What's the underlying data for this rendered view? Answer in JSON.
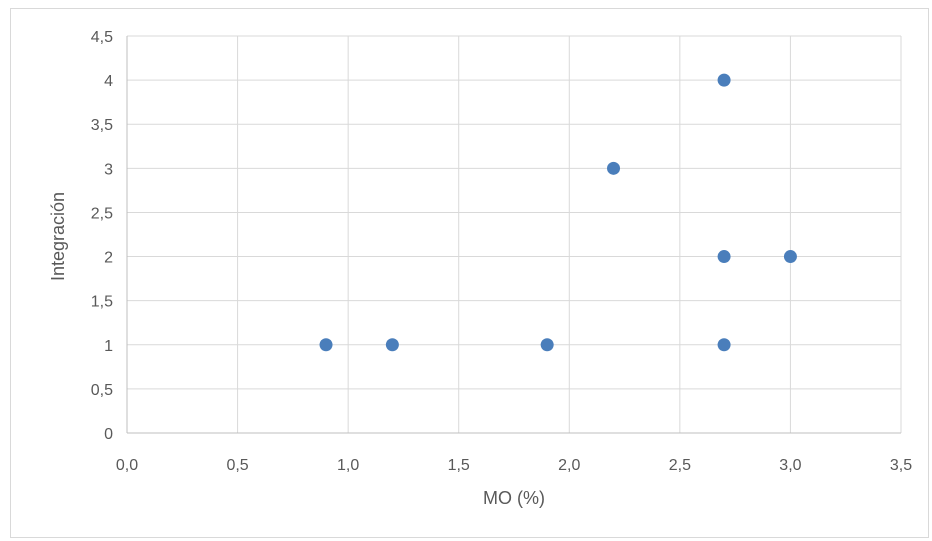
{
  "chart_data": {
    "type": "scatter",
    "title": "",
    "xlabel": "MO (%)",
    "ylabel": "Integración",
    "xlim": [
      0,
      3.5
    ],
    "ylim": [
      0,
      4.5
    ],
    "x_ticks": [
      "0,0",
      "0,5",
      "1,0",
      "1,5",
      "2,0",
      "2,5",
      "3,0",
      "3,5"
    ],
    "y_ticks": [
      "0",
      "0,5",
      "1",
      "1,5",
      "2",
      "2,5",
      "3",
      "3,5",
      "4",
      "4,5"
    ],
    "grid": true,
    "legend": "none",
    "marker_color": "#4a7ebb",
    "series": [
      {
        "points": [
          {
            "x": 0.9,
            "y": 1
          },
          {
            "x": 1.2,
            "y": 1
          },
          {
            "x": 1.9,
            "y": 1
          },
          {
            "x": 2.2,
            "y": 3
          },
          {
            "x": 2.7,
            "y": 4
          },
          {
            "x": 2.7,
            "y": 2
          },
          {
            "x": 2.7,
            "y": 1
          },
          {
            "x": 3.0,
            "y": 2
          }
        ]
      }
    ]
  }
}
